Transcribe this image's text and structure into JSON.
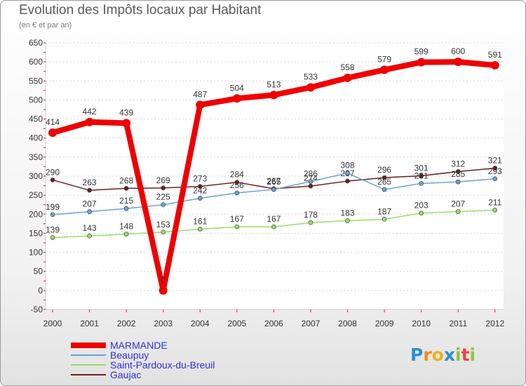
{
  "chart_data": {
    "type": "line",
    "title": "Evolution des Impôts locaux par Habitant",
    "subtitle": "(en € et par an)",
    "x": [
      "2000",
      "2001",
      "2002",
      "2003",
      "2004",
      "2005",
      "2006",
      "2007",
      "2008",
      "2009",
      "2010",
      "2011",
      "2012"
    ],
    "ylim": [
      -50,
      650
    ],
    "yticks": [
      -50,
      0,
      50,
      100,
      150,
      200,
      250,
      300,
      350,
      400,
      450,
      500,
      550,
      600,
      650
    ],
    "series": [
      {
        "name": "Gaujac",
        "color": "#6e1f1f",
        "values": [
          290,
          263,
          268,
          269,
          273,
          284,
          267,
          274,
          287,
          296,
          301,
          312,
          321
        ]
      },
      {
        "name": "Saint-Pardoux-du-Breuil",
        "color": "#99dd66",
        "values": [
          139,
          143,
          148,
          153,
          161,
          167,
          167,
          178,
          183,
          187,
          203,
          207,
          211
        ]
      },
      {
        "name": "Beaupuy",
        "color": "#6aa2d6",
        "values": [
          199,
          207,
          215,
          225,
          242,
          256,
          265,
          286,
          308,
          265,
          281,
          285,
          293
        ]
      },
      {
        "name": "MARMANDE",
        "color": "#ee0000",
        "values": [
          414,
          442,
          439,
          0,
          487,
          504,
          513,
          533,
          558,
          579,
          599,
          600,
          591
        ]
      }
    ]
  },
  "legend": [
    {
      "name": "MARMANDE",
      "color": "#ee0000",
      "label_color": "#2f2fdc"
    },
    {
      "name": "Beaupuy",
      "color": "#6aa2d6",
      "label_color": "#2f2fdc"
    },
    {
      "name": "Saint-Pardoux-du-Breuil",
      "color": "#99dd66",
      "label_color": "#2f2fdc"
    },
    {
      "name": "Gaujac",
      "color": "#6e1f1f",
      "label_color": "#2f2fdc"
    }
  ],
  "logo": {
    "letters": [
      "P",
      "r",
      "o",
      "x",
      "i",
      "t",
      "i"
    ],
    "colors": [
      "#2a8fd4",
      "#f08a1c",
      "#f0b21c",
      "#2a8fd4",
      "#8dc63f",
      "#e8454a",
      "#8dc63f"
    ]
  }
}
